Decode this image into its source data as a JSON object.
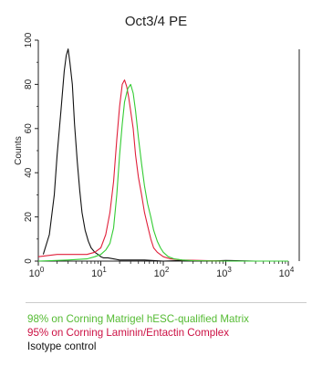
{
  "chart_data": {
    "type": "line",
    "title": "Oct3/4 PE",
    "ylabel": "Counts",
    "xlabel": "",
    "x_scale": "log",
    "xlim": [
      1,
      10000
    ],
    "ylim": [
      0,
      100
    ],
    "x_tick_labels": [
      {
        "base": "10",
        "exp": "0"
      },
      {
        "base": "10",
        "exp": "1"
      },
      {
        "base": "10",
        "exp": "2"
      },
      {
        "base": "10",
        "exp": "3"
      },
      {
        "base": "10",
        "exp": "4"
      }
    ],
    "x_tick_values": [
      1,
      10,
      100,
      1000,
      10000
    ],
    "y_tick_labels": [
      "0",
      "20",
      "40",
      "60",
      "80",
      "100"
    ],
    "y_tick_values": [
      0,
      20,
      40,
      60,
      80,
      100
    ],
    "series": [
      {
        "name": "Isotype control",
        "color": "#111111",
        "x": [
          1.2,
          1.5,
          1.8,
          2.0,
          2.3,
          2.6,
          2.8,
          3.0,
          3.2,
          3.5,
          3.8,
          4.2,
          4.6,
          5.0,
          5.6,
          6.3,
          7.0,
          8.0,
          9.0,
          10,
          11,
          13,
          16,
          20,
          30,
          50,
          100,
          200,
          500,
          1000,
          3000,
          10000
        ],
        "y": [
          3,
          12,
          30,
          48,
          68,
          86,
          93,
          96,
          90,
          80,
          62,
          45,
          32,
          22,
          14,
          9,
          6,
          4,
          3,
          2,
          1.5,
          1.5,
          1,
          0.5,
          0.5,
          0.5,
          0,
          0.3,
          0,
          0.3,
          0,
          0
        ]
      },
      {
        "name": "95% on Corning Laminin/Entactin Complex",
        "color": "#e0203a",
        "x": [
          1.0,
          2.0,
          4.0,
          6.0,
          8.0,
          10,
          12,
          14,
          16,
          18,
          20,
          22,
          24,
          26,
          28,
          30,
          33,
          36,
          40,
          45,
          50,
          56,
          63,
          70,
          80,
          100,
          130,
          200,
          400,
          1000,
          10000
        ],
        "y": [
          2,
          3,
          3,
          3,
          4,
          6,
          12,
          22,
          36,
          55,
          70,
          80,
          82,
          79,
          74,
          68,
          60,
          48,
          38,
          30,
          22,
          16,
          10,
          6,
          4,
          2,
          1,
          0.5,
          0.3,
          0,
          0
        ]
      },
      {
        "name": "98% on Corning Matrigel hESC-qualified Matrix",
        "color": "#33cc33",
        "x": [
          1.0,
          3.0,
          6.0,
          8.0,
          10,
          12,
          14,
          16,
          18,
          20,
          22,
          24,
          27,
          30,
          33,
          36,
          40,
          45,
          50,
          56,
          63,
          70,
          80,
          90,
          100,
          120,
          150,
          200,
          300,
          1000,
          10000
        ],
        "y": [
          0,
          0.5,
          1,
          2,
          3,
          5,
          8,
          15,
          30,
          48,
          62,
          72,
          78,
          80,
          76,
          68,
          56,
          44,
          34,
          26,
          20,
          14,
          9,
          6,
          4,
          2,
          1,
          0.5,
          0.2,
          0,
          0
        ]
      }
    ],
    "legend_position": "below"
  },
  "legend": [
    {
      "text": "98% on Corning Matrigel hESC-qualified Matrix",
      "color": "#55bb33"
    },
    {
      "text": "95% on Corning Laminin/Entactin Complex",
      "color": "#cc1144"
    },
    {
      "text": "Isotype control",
      "color": "#111111"
    }
  ]
}
